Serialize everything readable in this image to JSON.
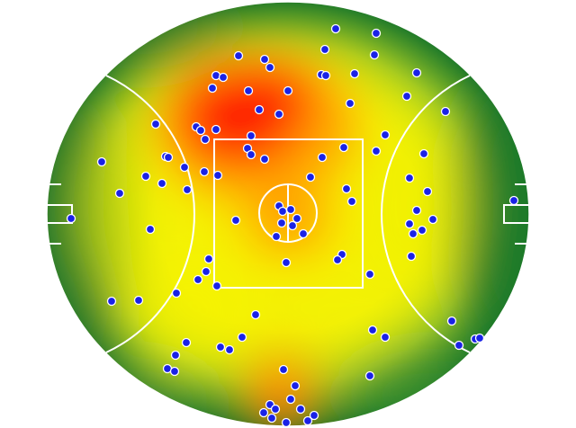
{
  "field": {
    "colors": {
      "outer": "#1f7a2a",
      "mid": "#5aa330",
      "low": "#d8ea20",
      "yellow": "#f7f200",
      "orange": "#ff9a00",
      "hot": "#ff1400",
      "lines": "#ffffff",
      "dot_fill": "#1a22e6",
      "dot_stroke": "#ffffff"
    }
  },
  "heat_zones": [
    {
      "zone": "forward-centre-left",
      "level": 1.0
    },
    {
      "zone": "centre-square",
      "level": 0.55
    },
    {
      "zone": "back-pocket-bottom",
      "level": 0.8
    },
    {
      "zone": "left-wing",
      "level": 0.45
    },
    {
      "zone": "right-wing",
      "level": 0.4
    }
  ],
  "chart_data": {
    "type": "scatter",
    "x": [
      373,
      418,
      265,
      294,
      300,
      361,
      240,
      248,
      357,
      362,
      394,
      416,
      463,
      236,
      276,
      320,
      452,
      389,
      495,
      173,
      218,
      223,
      240,
      228,
      288,
      310,
      279,
      275,
      279,
      294,
      428,
      382,
      358,
      418,
      471,
      113,
      133,
      184,
      187,
      205,
      227,
      242,
      162,
      180,
      208,
      345,
      385,
      391,
      455,
      475,
      463,
      481,
      455,
      459,
      469,
      310,
      323,
      330,
      313,
      314,
      325,
      337,
      307,
      262,
      167,
      318,
      380,
      375,
      457,
      232,
      229,
      241,
      220,
      196,
      411,
      124,
      154,
      284,
      269,
      245,
      255,
      414,
      428,
      502,
      510,
      528,
      533,
      207,
      195,
      186,
      194,
      315,
      328,
      323,
      300,
      293,
      302,
      306,
      318,
      334,
      342,
      349,
      411,
      571,
      79
    ],
    "y": [
      32,
      37,
      62,
      66,
      75,
      55,
      84,
      86,
      83,
      84,
      82,
      61,
      81,
      98,
      101,
      101,
      107,
      115,
      124,
      138,
      141,
      145,
      144,
      155,
      122,
      127,
      151,
      165,
      172,
      177,
      150,
      164,
      175,
      168,
      171,
      180,
      215,
      174,
      175,
      186,
      191,
      195,
      196,
      204,
      211,
      197,
      210,
      224,
      198,
      213,
      234,
      244,
      249,
      260,
      256,
      229,
      233,
      243,
      248,
      235,
      251,
      260,
      263,
      245,
      255,
      292,
      283,
      289,
      285,
      288,
      302,
      318,
      311,
      326,
      305,
      335,
      334,
      350,
      375,
      386,
      389,
      367,
      375,
      357,
      384,
      377,
      376,
      381,
      395,
      410,
      413,
      411,
      429,
      444,
      450,
      459,
      465,
      455,
      470,
      455,
      468,
      462,
      418,
      223,
      243
    ]
  }
}
